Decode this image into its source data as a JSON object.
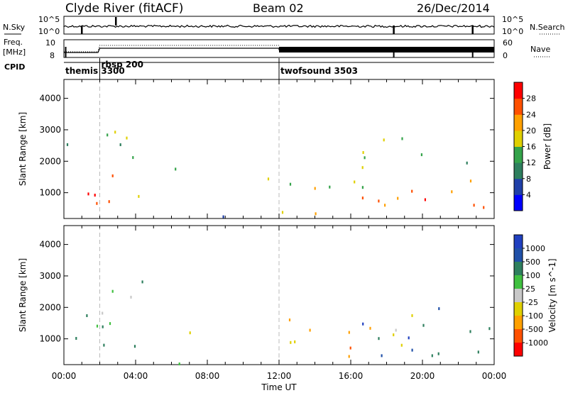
{
  "header": {
    "site": "Clyde River (fitACF)",
    "beam": "Beam 02",
    "date": "26/Dec/2014"
  },
  "top_panels": {
    "nsky_label": "N.Sky",
    "nsky_ticks": [
      "10^5",
      "10^0"
    ],
    "nsearch_label": "N.Search",
    "nsearch_ticks": [
      "10^5",
      "10^0"
    ],
    "freq_label_1": "Freq.",
    "freq_label_2": "[MHz]",
    "freq_ticks": [
      "10",
      "8"
    ],
    "nave_label": "Nave",
    "nave_ticks": [
      "60",
      "0"
    ],
    "cpid_label": "CPID",
    "cpid_segments": [
      {
        "name": "themis 3300",
        "start_hour": 0,
        "end_hour": 2
      },
      {
        "name": "rbsp 200",
        "start_hour": 2,
        "end_hour": 12
      },
      {
        "name": "twofsound 3503",
        "start_hour": 12,
        "end_hour": 24
      }
    ]
  },
  "x_axis": {
    "label": "Time UT",
    "ticks": [
      "00:00",
      "04:00",
      "08:00",
      "12:00",
      "16:00",
      "20:00",
      "00:00"
    ],
    "range_hours": [
      0,
      24
    ]
  },
  "chart_data": [
    {
      "type": "heatmap",
      "title": "",
      "ylabel": "Slant Range [km]",
      "yticks": [
        1000,
        2000,
        3000,
        4000
      ],
      "ylim": [
        180,
        4600
      ],
      "xlim": [
        0,
        24
      ],
      "colorbar": {
        "label": "Power [dB]",
        "ticks": [
          4,
          8,
          12,
          16,
          20,
          24,
          28
        ],
        "range": [
          0,
          32
        ],
        "colors": [
          "#0000ff",
          "#2040a8",
          "#2e7f5e",
          "#34a34a",
          "#e0d000",
          "#ffa000",
          "#ff5000",
          "#ff0000"
        ]
      },
      "regions": [
        {
          "x": [
            0.0,
            2.5
          ],
          "y": [
            300,
            1700
          ],
          "value": 30
        },
        {
          "x": [
            2.3,
            6.0
          ],
          "y": [
            600,
            1600
          ],
          "value": 22
        },
        {
          "x": [
            0.0,
            4.8
          ],
          "y": [
            1700,
            3000
          ],
          "value": 14
        },
        {
          "x": [
            6.0,
            7.2
          ],
          "y": [
            1100,
            1800
          ],
          "value": 12
        },
        {
          "x": [
            11.2,
            17.5
          ],
          "y": [
            300,
            1700
          ],
          "value": 18
        },
        {
          "x": [
            16.5,
            24.0
          ],
          "y": [
            500,
            1900
          ],
          "value": 27
        },
        {
          "x": [
            16.0,
            24.0
          ],
          "y": [
            1800,
            2800
          ],
          "value": 14
        },
        {
          "x": [
            4.0,
            11.5
          ],
          "y": [
            200,
            350
          ],
          "value": 8
        }
      ]
    },
    {
      "type": "heatmap",
      "title": "",
      "ylabel": "Slant Range [km]",
      "yticks": [
        1000,
        2000,
        3000,
        4000
      ],
      "ylim": [
        180,
        4600
      ],
      "xlim": [
        0,
        24
      ],
      "colorbar": {
        "label": "Velocity [m s^-1]",
        "ticks": [
          "1000",
          "500",
          "100",
          "25",
          "-25",
          "-100",
          "-500",
          "-1000"
        ],
        "colors": [
          "#2040c0",
          "#2050a8",
          "#2e7f5e",
          "#40c040",
          "#c8c8c8",
          "#e0d000",
          "#ffa000",
          "#ff5000",
          "#ff0000"
        ]
      },
      "regions": [
        {
          "x": [
            0.0,
            4.5
          ],
          "y": [
            300,
            1700
          ],
          "value": "100"
        },
        {
          "x": [
            0.0,
            4.5
          ],
          "y": [
            1700,
            2900
          ],
          "value": "25"
        },
        {
          "x": [
            6.0,
            7.2
          ],
          "y": [
            1100,
            1900
          ],
          "value": "-500"
        },
        {
          "x": [
            11.2,
            17.5
          ],
          "y": [
            350,
            1700
          ],
          "value": "-500"
        },
        {
          "x": [
            16.5,
            24.0
          ],
          "y": [
            500,
            2200
          ],
          "value": "500"
        },
        {
          "x": [
            17.0,
            20.0
          ],
          "y": [
            600,
            1900
          ],
          "value": "-100"
        },
        {
          "x": [
            4.0,
            11.5
          ],
          "y": [
            200,
            350
          ],
          "value": "100"
        }
      ]
    }
  ]
}
